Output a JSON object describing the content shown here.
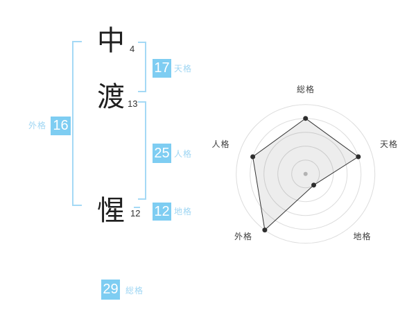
{
  "name": {
    "characters": [
      {
        "char": "中",
        "strokes": "4"
      },
      {
        "char": "渡",
        "strokes": "13"
      },
      {
        "char": "惺",
        "strokes": "12"
      }
    ]
  },
  "gaku": {
    "tenkaku": {
      "value": "17",
      "label": "天格"
    },
    "jinkaku": {
      "value": "25",
      "label": "人格"
    },
    "chikaku": {
      "value": "12",
      "label": "地格"
    },
    "gaikaku": {
      "value": "16",
      "label": "外格"
    },
    "soukaku": {
      "value": "29",
      "label": "総格"
    }
  },
  "colors": {
    "accent_blue": "#7ecdf2",
    "light_blue": "#a4d9f5",
    "label_blue": "#9fd6f3",
    "chart_grid": "#dcdcdc",
    "chart_line": "#333333",
    "chart_dot": "#2e2e2e",
    "chart_center_dot": "#c1c1c1",
    "chart_fill": "rgba(0,0,0,0.07)",
    "chart_label": "#3d3d3d"
  },
  "chart_data": {
    "type": "radar",
    "categories": [
      "総格",
      "天格",
      "地格",
      "外格",
      "人格"
    ],
    "values": [
      4,
      4,
      1,
      5,
      4
    ],
    "value_max": 5,
    "rings": 5,
    "grid": "concentric-circles",
    "legend": "none",
    "title": ""
  }
}
